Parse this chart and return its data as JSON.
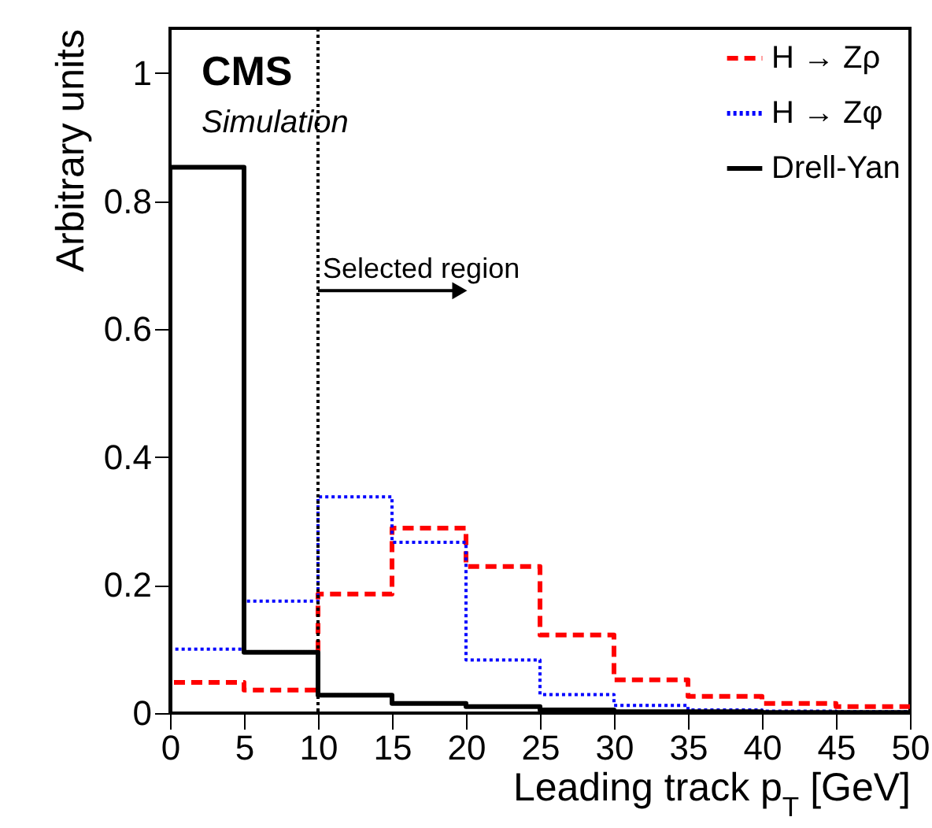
{
  "chart_data": {
    "type": "histogram",
    "xlabel": "Leading track p$_{T}$ [GeV]",
    "ylabel": "Arbitrary units",
    "bins": [
      0,
      5,
      10,
      15,
      20,
      25,
      30,
      35,
      40,
      45,
      50
    ],
    "series": [
      {
        "name": "H → Zρ",
        "color": "#ff0000",
        "line_style": "dashed",
        "values": [
          0.048,
          0.036,
          0.186,
          0.289,
          0.229,
          0.122,
          0.052,
          0.026,
          0.015,
          0.01
        ]
      },
      {
        "name": "H → Zφ",
        "color": "#0000ff",
        "line_style": "dotted",
        "values": [
          0.1,
          0.175,
          0.338,
          0.267,
          0.083,
          0.029,
          0.012,
          0.005,
          0.003,
          0.002
        ]
      },
      {
        "name": "Drell-Yan",
        "color": "#000000",
        "line_style": "solid",
        "values": [
          0.853,
          0.095,
          0.028,
          0.015,
          0.01,
          0.005,
          0.002,
          0.002,
          0.001,
          0.001
        ]
      }
    ],
    "xlim": [
      0,
      50
    ],
    "xticks": [
      0,
      5,
      10,
      15,
      20,
      25,
      30,
      35,
      40,
      45,
      50
    ],
    "ylim": [
      0,
      1.07
    ],
    "yticks": [
      0,
      0.2,
      0.4,
      0.6,
      0.8,
      1
    ],
    "ref_lines": [
      {
        "axis": "x",
        "value": 10,
        "line_style": "dotted",
        "color": "#000000"
      }
    ],
    "annotations": [
      "CMS",
      "Simulation",
      {
        "text": "Selected region",
        "x": 10,
        "y": 0.66
      }
    ],
    "legend": "top right",
    "grid": false
  }
}
